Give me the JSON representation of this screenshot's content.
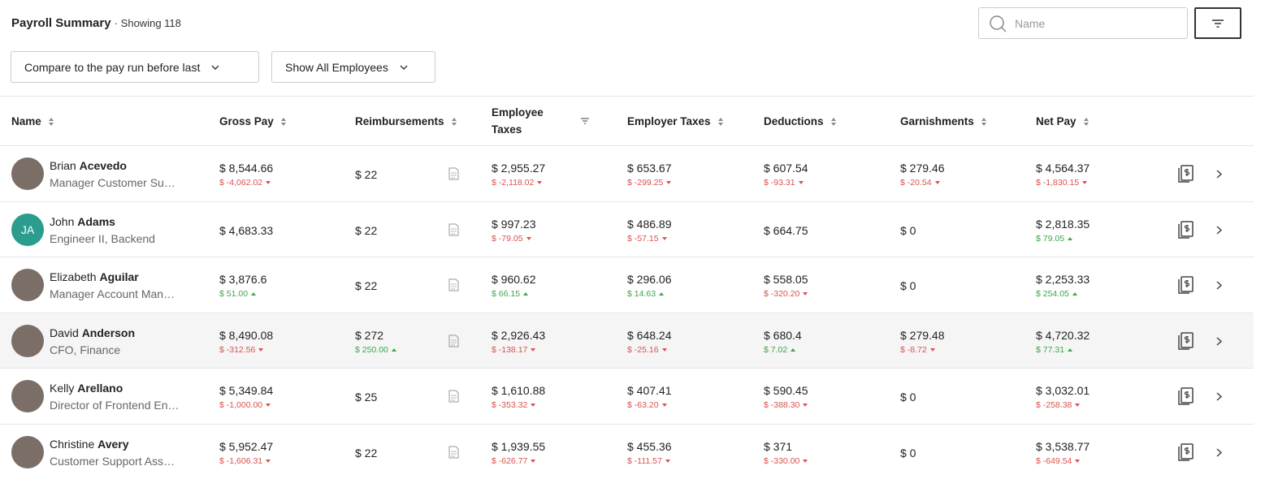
{
  "header": {
    "title": "Payroll Summary",
    "count": "· Showing 118",
    "search_placeholder": "Name"
  },
  "filters": [
    "Compare to the pay run before last",
    "Show All Employees"
  ],
  "table": {
    "columns": [
      "Name",
      "Gross Pay",
      "Reimbursements",
      "Employee Taxes",
      "Employer Taxes",
      "Deductions",
      "Garnishments",
      "Net Pay"
    ],
    "rows": [
      {
        "first": "Brian",
        "last": "Acevedo",
        "role": "Manager Customer Su…",
        "initials": null,
        "highlight": false,
        "cells": [
          {
            "value": "$ 8,544.66",
            "change": "$ -4,062.02",
            "trend": "down"
          },
          {
            "value": "$ 22"
          },
          {
            "value": "$ 2,955.27",
            "change": "$ -2,118.02",
            "trend": "down"
          },
          {
            "value": "$ 653.67",
            "change": "$ -299.25",
            "trend": "down"
          },
          {
            "value": "$ 607.54",
            "change": "$ -93.31",
            "trend": "down"
          },
          {
            "value": "$ 279.46",
            "change": "$ -20.54",
            "trend": "down"
          },
          {
            "value": "$ 4,564.37",
            "change": "$ -1,830.15",
            "trend": "down"
          }
        ]
      },
      {
        "first": "John",
        "last": "Adams",
        "role": "Engineer II, Backend",
        "initials": "JA",
        "highlight": false,
        "cells": [
          {
            "value": "$ 4,683.33"
          },
          {
            "value": "$ 22"
          },
          {
            "value": "$ 997.23",
            "change": "$ -79.05",
            "trend": "down"
          },
          {
            "value": "$ 486.89",
            "change": "$ -57.15",
            "trend": "down"
          },
          {
            "value": "$ 664.75"
          },
          {
            "value": "$ 0"
          },
          {
            "value": "$ 2,818.35",
            "change": "$ 79.05",
            "trend": "up"
          }
        ]
      },
      {
        "first": "Elizabeth",
        "last": "Aguilar",
        "role": "Manager Account Man…",
        "initials": null,
        "highlight": false,
        "cells": [
          {
            "value": "$ 3,876.6",
            "change": "$ 51.00",
            "trend": "up"
          },
          {
            "value": "$ 22"
          },
          {
            "value": "$ 960.62",
            "change": "$ 66.15",
            "trend": "up"
          },
          {
            "value": "$ 296.06",
            "change": "$ 14.63",
            "trend": "up"
          },
          {
            "value": "$ 558.05",
            "change": "$ -320.20",
            "trend": "down"
          },
          {
            "value": "$ 0"
          },
          {
            "value": "$ 2,253.33",
            "change": "$ 254.05",
            "trend": "up"
          }
        ]
      },
      {
        "first": "David",
        "last": "Anderson",
        "role": "CFO, Finance",
        "initials": null,
        "highlight": true,
        "cells": [
          {
            "value": "$ 8,490.08",
            "change": "$ -312.56",
            "trend": "down"
          },
          {
            "value": "$ 272",
            "change": "$ 250.00",
            "trend": "up"
          },
          {
            "value": "$ 2,926.43",
            "change": "$ -138.17",
            "trend": "down"
          },
          {
            "value": "$ 648.24",
            "change": "$ -25.16",
            "trend": "down"
          },
          {
            "value": "$ 680.4",
            "change": "$ 7.02",
            "trend": "up"
          },
          {
            "value": "$ 279.48",
            "change": "$ -8.72",
            "trend": "down"
          },
          {
            "value": "$ 4,720.32",
            "change": "$ 77.31",
            "trend": "up"
          }
        ]
      },
      {
        "first": "Kelly",
        "last": "Arellano",
        "role": "Director of Frontend En…",
        "initials": null,
        "highlight": false,
        "cells": [
          {
            "value": "$ 5,349.84",
            "change": "$ -1,000.00",
            "trend": "down"
          },
          {
            "value": "$ 25"
          },
          {
            "value": "$ 1,610.88",
            "change": "$ -353.32",
            "trend": "down"
          },
          {
            "value": "$ 407.41",
            "change": "$ -63.20",
            "trend": "down"
          },
          {
            "value": "$ 590.45",
            "change": "$ -388.30",
            "trend": "down"
          },
          {
            "value": "$ 0"
          },
          {
            "value": "$ 3,032.01",
            "change": "$ -258.38",
            "trend": "down"
          }
        ]
      },
      {
        "first": "Christine",
        "last": "Avery",
        "role": "Customer Support Ass…",
        "initials": null,
        "highlight": false,
        "cells": [
          {
            "value": "$ 5,952.47",
            "change": "$ -1,606.31",
            "trend": "down"
          },
          {
            "value": "$ 22"
          },
          {
            "value": "$ 1,939.55",
            "change": "$ -626.77",
            "trend": "down"
          },
          {
            "value": "$ 455.36",
            "change": "$ -111.57",
            "trend": "down"
          },
          {
            "value": "$ 371",
            "change": "$ -330.00",
            "trend": "down"
          },
          {
            "value": "$ 0"
          },
          {
            "value": "$ 3,538.77",
            "change": "$ -649.54",
            "trend": "down"
          }
        ]
      }
    ]
  }
}
